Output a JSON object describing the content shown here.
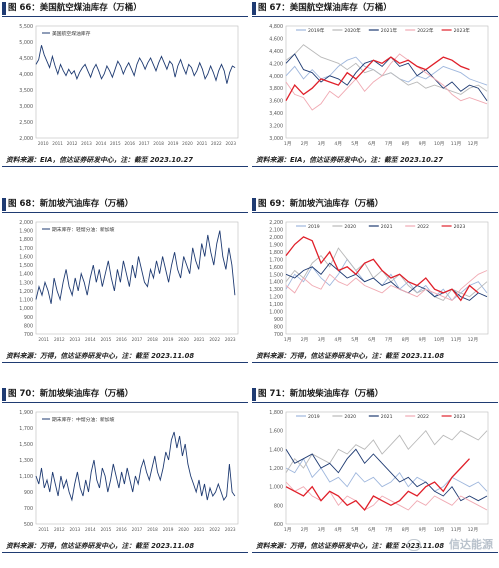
{
  "panels": [
    {
      "title": "图 66：美国航空煤油库存（万桶）",
      "source": "资料来源：EIA，信达证券研发中心，注：截至 2023.10.27",
      "chart_data": {
        "type": "line",
        "xaxis": "year",
        "ylim": [
          2000,
          5500
        ],
        "yticks": [
          2000,
          2500,
          3000,
          3500,
          4000,
          4500,
          5000,
          5500
        ],
        "ytick_labels": [
          "2,000",
          "2,500",
          "3,000",
          "3,500",
          "4,000",
          "4,500",
          "5,000",
          "5,500"
        ],
        "xticks": [
          "2010",
          "2011",
          "2012",
          "2013",
          "2014",
          "2015",
          "2016",
          "2017",
          "2018",
          "2019",
          "2020",
          "2021",
          "2022",
          "2023"
        ],
        "x_start": 2010,
        "x_end": 2024,
        "legend_position": "top-left",
        "series": [
          {
            "name": "美国航空煤油库存",
            "color": "#1f3b72",
            "values": [
              4300,
              4450,
              4900,
              4600,
              4400,
              4200,
              4550,
              4250,
              4000,
              4300,
              4100,
              3950,
              4150,
              4000,
              4100,
              3850,
              4050,
              4200,
              4300,
              4100,
              3900,
              4150,
              4300,
              4100,
              3850,
              4000,
              4250,
              4100,
              3900,
              4150,
              4400,
              4250,
              4000,
              4200,
              4350,
              4150,
              3950,
              4300,
              4500,
              4350,
              4150,
              4350,
              4500,
              4300,
              4100,
              4350,
              4550,
              4350,
              4150,
              4400,
              4300,
              3900,
              4250,
              4450,
              4200,
              4000,
              4300,
              4200,
              3950,
              4100,
              4350,
              4150,
              3850,
              4000,
              4250,
              4050,
              3800,
              4100,
              4300,
              4100,
              3700,
              4050,
              4250,
              4200
            ]
          }
        ]
      }
    },
    {
      "title": "图 67：美国航空煤油库存（万桶）",
      "source": "资料来源：EIA，信达证券研发中心，注：截至 2023.10.27",
      "chart_data": {
        "type": "line",
        "xaxis": "month",
        "ylim": [
          3000,
          4800
        ],
        "yticks": [
          3000,
          3200,
          3400,
          3600,
          3800,
          4000,
          4200,
          4400,
          4600,
          4800
        ],
        "ytick_labels": [
          "3,000",
          "3,200",
          "3,400",
          "3,600",
          "3,800",
          "4,000",
          "4,200",
          "4,400",
          "4,600",
          "4,800"
        ],
        "xticks": [
          "1月",
          "2月",
          "3月",
          "4月",
          "5月",
          "6月",
          "7月",
          "8月",
          "9月",
          "10月",
          "11月",
          "12月"
        ],
        "legend_position": "top",
        "series": [
          {
            "name": "2019年",
            "color": "#9fb7dd",
            "values": [
              4000,
              4150,
              3950,
              4100,
              3950,
              4000,
              4150,
              4250,
              4300,
              4150,
              4100,
              4000,
              4050,
              3950,
              3900,
              4000,
              3950,
              4050,
              4150,
              4100,
              4050,
              3950,
              3900,
              3850
            ]
          },
          {
            "name": "2020年",
            "color": "#b9b9b9",
            "values": [
              4250,
              4350,
              4500,
              4400,
              4300,
              4250,
              4200,
              4100,
              4200,
              4050,
              4100,
              4000,
              4050,
              3950,
              3850,
              3900,
              3800,
              3850,
              3800,
              3750,
              3700,
              3800,
              3850,
              3750
            ]
          },
          {
            "name": "2021年",
            "color": "#1f3b72",
            "values": [
              4200,
              4350,
              4100,
              4050,
              3900,
              4000,
              3950,
              3850,
              4050,
              4200,
              4250,
              4150,
              4300,
              4150,
              4200,
              4000,
              4100,
              3950,
              3800,
              3900,
              3750,
              3850,
              3800,
              3600
            ]
          },
          {
            "name": "2022年",
            "color": "#f0aab3",
            "values": [
              3900,
              3700,
              3650,
              3450,
              3550,
              3750,
              3650,
              3800,
              3950,
              3750,
              3900,
              4000,
              4200,
              4350,
              4250,
              4150,
              4050,
              3950,
              3850,
              3700,
              3600,
              3650,
              3600,
              3550
            ]
          },
          {
            "name": "2023年",
            "color": "#e0202a",
            "values": [
              3600,
              3850,
              3700,
              3800,
              3950,
              3900,
              3850,
              4050,
              3950,
              4100,
              4250,
              4200,
              4300,
              4200,
              4250,
              4150,
              4100,
              4200,
              4300,
              4250,
              4150,
              4100
            ]
          }
        ]
      }
    },
    {
      "title": "图 68：新加坡汽油库存（万桶）",
      "source": "资料来源：万得，信达证券研发中心，注：截至 2023.11.08",
      "chart_data": {
        "type": "line",
        "xaxis": "year",
        "ylim": [
          700,
          2000
        ],
        "yticks": [
          700,
          800,
          900,
          1000,
          1100,
          1200,
          1300,
          1400,
          1500,
          1600,
          1700,
          1800,
          1900,
          2000
        ],
        "ytick_labels": [
          "700",
          "800",
          "900",
          "1,000",
          "1,100",
          "1,200",
          "1,300",
          "1,400",
          "1,500",
          "1,600",
          "1,700",
          "1,800",
          "1,900",
          "2,000"
        ],
        "xticks": [
          "2011",
          "2012",
          "2013",
          "2014",
          "2015",
          "2016",
          "2017",
          "2018",
          "2019",
          "2020",
          "2021",
          "2022",
          "2023"
        ],
        "x_start": 2011,
        "x_end": 2024,
        "legend_position": "top-left",
        "series": [
          {
            "name": "期末库存：轻馏分油：新加坡",
            "color": "#1f3b72",
            "values": [
              1100,
              1250,
              1150,
              1300,
              1200,
              1050,
              1350,
              1200,
              1100,
              1300,
              1450,
              1250,
              1150,
              1350,
              1200,
              1400,
              1300,
              1150,
              1350,
              1500,
              1300,
              1450,
              1250,
              1400,
              1550,
              1350,
              1200,
              1450,
              1300,
              1550,
              1400,
              1250,
              1500,
              1350,
              1600,
              1450,
              1300,
              1250,
              1450,
              1350,
              1550,
              1400,
              1600,
              1450,
              1300,
              1500,
              1650,
              1450,
              1350,
              1600,
              1500,
              1400,
              1700,
              1550,
              1450,
              1750,
              1600,
              1850,
              1650,
              1500,
              1750,
              1900,
              1600,
              1450,
              1700,
              1500,
              1150
            ]
          }
        ]
      }
    },
    {
      "title": "图 69：新加坡汽油库存（万桶）",
      "source": "资料来源：万得，信达证券研发中心，注：截至 2023.11.08",
      "chart_data": {
        "type": "line",
        "xaxis": "month",
        "ylim": [
          700,
          2200
        ],
        "yticks": [
          700,
          800,
          900,
          1000,
          1100,
          1200,
          1300,
          1400,
          1500,
          1600,
          1700,
          1800,
          1900,
          2000,
          2100,
          2200
        ],
        "ytick_labels": [
          "700",
          "800",
          "900",
          "1,000",
          "1,100",
          "1,200",
          "1,300",
          "1,400",
          "1,500",
          "1,600",
          "1,700",
          "1,800",
          "1,900",
          "2,000",
          "2,100",
          "2,200"
        ],
        "xticks": [
          "1月",
          "2月",
          "3月",
          "4月",
          "5月",
          "6月",
          "7月",
          "8月",
          "9月",
          "10月",
          "11月",
          "12月"
        ],
        "legend_position": "top",
        "series": [
          {
            "name": "2019",
            "color": "#9fb7dd",
            "values": [
              1300,
              1500,
              1400,
              1600,
              1450,
              1350,
              1500,
              1700,
              1550,
              1400,
              1450,
              1350,
              1500,
              1300,
              1400,
              1250,
              1350,
              1200,
              1300,
              1150,
              1250,
              1350,
              1400,
              1250
            ]
          },
          {
            "name": "2020",
            "color": "#b9b9b9",
            "values": [
              1400,
              1550,
              1450,
              1650,
              1750,
              1600,
              1850,
              1700,
              1550,
              1650,
              1450,
              1550,
              1400,
              1500,
              1350,
              1250,
              1300,
              1200,
              1150,
              1300,
              1250,
              1200,
              1300,
              1400
            ]
          },
          {
            "name": "2021",
            "color": "#1f3b72",
            "values": [
              1500,
              1450,
              1550,
              1600,
              1500,
              1650,
              1550,
              1450,
              1500,
              1400,
              1450,
              1350,
              1400,
              1300,
              1250,
              1350,
              1300,
              1200,
              1250,
              1300,
              1200,
              1150,
              1250,
              1200
            ]
          },
          {
            "name": "2022",
            "color": "#f0aab3",
            "values": [
              1350,
              1250,
              1450,
              1350,
              1300,
              1500,
              1400,
              1350,
              1450,
              1350,
              1300,
              1250,
              1350,
              1300,
              1250,
              1200,
              1300,
              1250,
              1200,
              1150,
              1300,
              1400,
              1500,
              1550
            ]
          },
          {
            "name": "2023",
            "color": "#e0202a",
            "values": [
              1750,
              1900,
              2000,
              1950,
              1650,
              1800,
              1550,
              1600,
              1500,
              1650,
              1700,
              1550,
              1450,
              1500,
              1400,
              1350,
              1450,
              1300,
              1250,
              1300,
              1150,
              1350,
              1250
            ]
          }
        ]
      }
    },
    {
      "title": "图 70：新加坡柴油库存（万桶）",
      "source": "资料来源：万得，信达证券研发中心，注：截至 2023.11.08",
      "chart_data": {
        "type": "line",
        "xaxis": "year",
        "ylim": [
          500,
          1900
        ],
        "yticks": [
          500,
          700,
          900,
          1100,
          1300,
          1500,
          1700,
          1900
        ],
        "ytick_labels": [
          "500",
          "700",
          "900",
          "1,100",
          "1,300",
          "1,500",
          "1,700",
          "1,900"
        ],
        "xticks": [
          "2011",
          "2012",
          "2013",
          "2014",
          "2015",
          "2016",
          "2017",
          "2018",
          "2019",
          "2020",
          "2021",
          "2022",
          "2023"
        ],
        "x_start": 2011,
        "x_end": 2024,
        "legend_position": "top-left",
        "series": [
          {
            "name": "期末库存：中馏分油：新加坡",
            "color": "#1f3b72",
            "values": [
              1100,
              1000,
              1200,
              950,
              1050,
              900,
              1150,
              1000,
              850,
              1100,
              950,
              1050,
              900,
              800,
              1000,
              1150,
              950,
              850,
              1050,
              900,
              1150,
              1300,
              1050,
              950,
              1200,
              1100,
              900,
              1050,
              1250,
              1100,
              950,
              1150,
              1000,
              1200,
              1050,
              900,
              1100,
              1000,
              1200,
              1300,
              1150,
              1050,
              1200,
              1350,
              1150,
              1050,
              1200,
              1400,
              1300,
              1550,
              1650,
              1450,
              1600,
              1350,
              1500,
              1250,
              1100,
              1000,
              900,
              1050,
              850,
              1000,
              800,
              950,
              850,
              900,
              1000,
              900,
              800,
              850,
              1250,
              900,
              850
            ]
          }
        ]
      }
    },
    {
      "title": "图 71：新加坡柴油库存（万桶）",
      "source": "资料来源：万得，信达证券研发中心，注：截至 2023.11.08",
      "chart_data": {
        "type": "line",
        "xaxis": "month",
        "ylim": [
          600,
          1800
        ],
        "yticks": [
          600,
          800,
          1000,
          1200,
          1400,
          1600,
          1800
        ],
        "ytick_labels": [
          "600",
          "800",
          "1,000",
          "1,200",
          "1,400",
          "1,600",
          "1,800"
        ],
        "xticks": [
          "1月",
          "2月",
          "3月",
          "4月",
          "5月",
          "6月",
          "7月",
          "8月",
          "9月",
          "10月",
          "11月",
          "12月"
        ],
        "legend_position": "top",
        "series": [
          {
            "name": "2019",
            "color": "#9fb7dd",
            "values": [
              1200,
              1150,
              1300,
              1100,
              1200,
              1050,
              1100,
              1000,
              1150,
              1050,
              1100,
              1000,
              1050,
              1150,
              1000,
              1100,
              1050,
              950,
              1000,
              1100,
              1050,
              1000,
              1050,
              950
            ]
          },
          {
            "name": "2020",
            "color": "#b9b9b9",
            "values": [
              1150,
              1300,
              1200,
              1350,
              1300,
              1250,
              1400,
              1350,
              1450,
              1400,
              1500,
              1350,
              1450,
              1550,
              1400,
              1500,
              1600,
              1450,
              1550,
              1500,
              1600,
              1550,
              1500,
              1600
            ]
          },
          {
            "name": "2021",
            "color": "#1f3b72",
            "values": [
              1400,
              1250,
              1300,
              1350,
              1200,
              1250,
              1150,
              1300,
              1400,
              1250,
              1350,
              1250,
              1150,
              1050,
              1100,
              1000,
              1050,
              950,
              900,
              1000,
              850,
              900,
              850,
              900
            ]
          },
          {
            "name": "2022",
            "color": "#f0aab3",
            "values": [
              1050,
              950,
              1000,
              900,
              850,
              950,
              800,
              900,
              850,
              750,
              800,
              900,
              850,
              800,
              750,
              850,
              800,
              900,
              850,
              800,
              900,
              850,
              800,
              750
            ]
          },
          {
            "name": "2023",
            "color": "#e0202a",
            "values": [
              1000,
              950,
              900,
              1000,
              850,
              950,
              900,
              800,
              850,
              750,
              900,
              850,
              800,
              850,
              950,
              900,
              1000,
              1050,
              950,
              1100,
              1200,
              1300
            ]
          }
        ]
      }
    }
  ],
  "watermark": "信达能源"
}
